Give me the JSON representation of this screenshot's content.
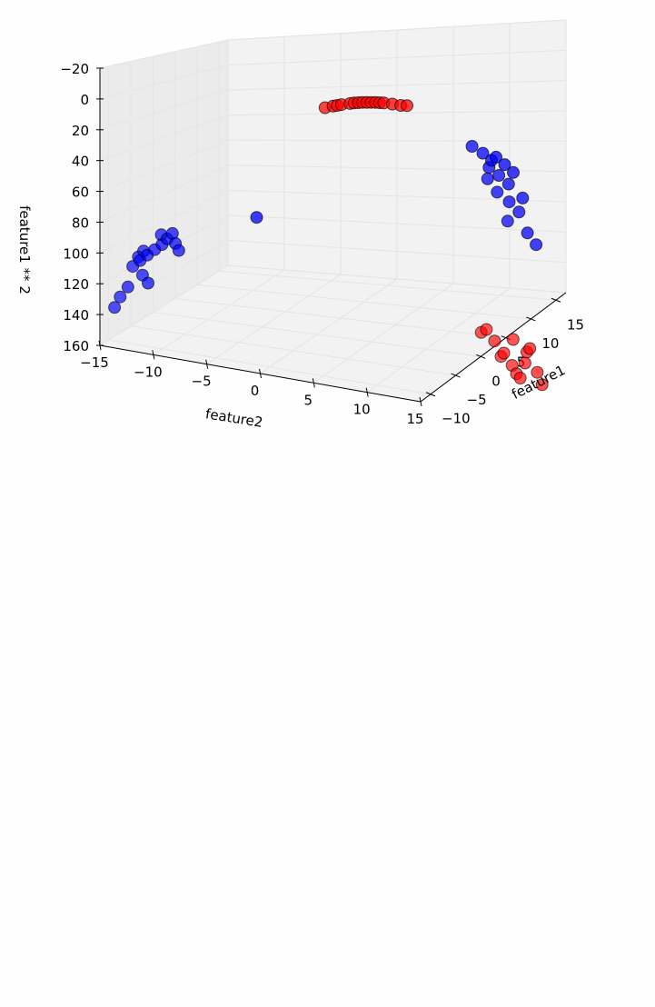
{
  "chart_data": {
    "type": "scatter",
    "projection": "3d",
    "title": "",
    "xlabel": "feature1",
    "ylabel": "feature2",
    "zlabel": "feature1 ** 2",
    "xlim": [
      -12,
      17
    ],
    "ylim": [
      -15,
      15
    ],
    "zlim": [
      -20,
      160
    ],
    "z_inverted": true,
    "grid": true,
    "x_ticks": [
      "−10",
      "−5",
      "0",
      "5",
      "10",
      "15"
    ],
    "y_ticks": [
      "−15",
      "−10",
      "−5",
      "0",
      "5",
      "10",
      "15"
    ],
    "z_ticks": [
      "−20",
      "0",
      "20",
      "40",
      "60",
      "80",
      "100",
      "120",
      "140",
      "160"
    ],
    "series": [
      {
        "color": "#ff0000",
        "points": [
          [
            -1.2,
            2.0,
            1.4
          ],
          [
            -0.8,
            2.6,
            0.6
          ],
          [
            -0.4,
            3.2,
            0.2
          ],
          [
            0.0,
            3.8,
            0.0
          ],
          [
            0.4,
            4.4,
            0.2
          ],
          [
            0.8,
            5.0,
            0.6
          ],
          [
            1.2,
            5.6,
            1.4
          ],
          [
            1.6,
            6.2,
            2.6
          ],
          [
            2.0,
            6.8,
            4.0
          ],
          [
            -1.5,
            1.4,
            2.3
          ],
          [
            1.9,
            7.4,
            3.6
          ],
          [
            0.2,
            4.1,
            0.0
          ],
          [
            -0.2,
            3.5,
            0.0
          ],
          [
            0.6,
            4.7,
            0.4
          ],
          [
            1.0,
            5.3,
            1.0
          ],
          [
            -1.0,
            2.3,
            1.0
          ],
          [
            13.4,
            9.5,
            179.6
          ],
          [
            13.7,
            10.1,
            187.7
          ],
          [
            14.0,
            10.8,
            196.0
          ],
          [
            14.3,
            11.4,
            204.5
          ],
          [
            14.6,
            12.0,
            213.2
          ],
          [
            14.2,
            12.6,
            201.6
          ],
          [
            13.8,
            13.2,
            190.4
          ],
          [
            13.5,
            9.0,
            182.3
          ],
          [
            14.5,
            11.7,
            210.3
          ],
          [
            13.9,
            12.9,
            193.2
          ],
          [
            14.4,
            13.6,
            207.4
          ],
          [
            14.1,
            10.5,
            198.8
          ],
          [
            13.6,
            11.8,
            185.0
          ],
          [
            14.7,
            13.9,
            216.1
          ]
        ]
      },
      {
        "color": "#0000ff",
        "points": [
          [
            -9.6,
            -10.2,
            92.2
          ],
          [
            -9.8,
            -10.8,
            96.0
          ],
          [
            -10.0,
            -11.4,
            100.0
          ],
          [
            -10.2,
            -12.0,
            104.0
          ],
          [
            -10.4,
            -12.6,
            108.2
          ],
          [
            -10.6,
            -11.6,
            112.4
          ],
          [
            -10.8,
            -11.0,
            116.6
          ],
          [
            -11.0,
            -12.8,
            121.0
          ],
          [
            -11.3,
            -13.4,
            127.7
          ],
          [
            -9.4,
            -9.8,
            88.4
          ],
          [
            -9.2,
            -9.4,
            84.6
          ],
          [
            -11.6,
            -13.8,
            134.6
          ],
          [
            -9.3,
            -10.4,
            86.5
          ],
          [
            -9.5,
            -9.0,
            90.3
          ],
          [
            -9.7,
            -8.6,
            94.1
          ],
          [
            -8.2,
            -2.0,
            67.2
          ],
          [
            -10.1,
            -12.2,
            102.0
          ],
          [
            -9.9,
            -11.8,
            98.0
          ],
          [
            6.2,
            11.4,
            38.4
          ],
          [
            6.6,
            12.2,
            43.6
          ],
          [
            7.0,
            12.8,
            49.0
          ],
          [
            7.4,
            12.4,
            54.8
          ],
          [
            7.8,
            13.1,
            60.8
          ],
          [
            8.2,
            13.8,
            67.2
          ],
          [
            8.6,
            12.6,
            74.0
          ],
          [
            9.0,
            13.5,
            81.0
          ],
          [
            9.4,
            14.2,
            88.4
          ],
          [
            9.8,
            13.0,
            96.0
          ],
          [
            10.2,
            14.6,
            104.0
          ],
          [
            6.8,
            13.3,
            46.2
          ],
          [
            7.2,
            13.9,
            51.8
          ],
          [
            8.0,
            12.0,
            64.0
          ],
          [
            8.8,
            14.8,
            77.4
          ],
          [
            10.6,
            15.2,
            112.4
          ],
          [
            7.6,
            14.5,
            57.8
          ]
        ]
      }
    ]
  }
}
